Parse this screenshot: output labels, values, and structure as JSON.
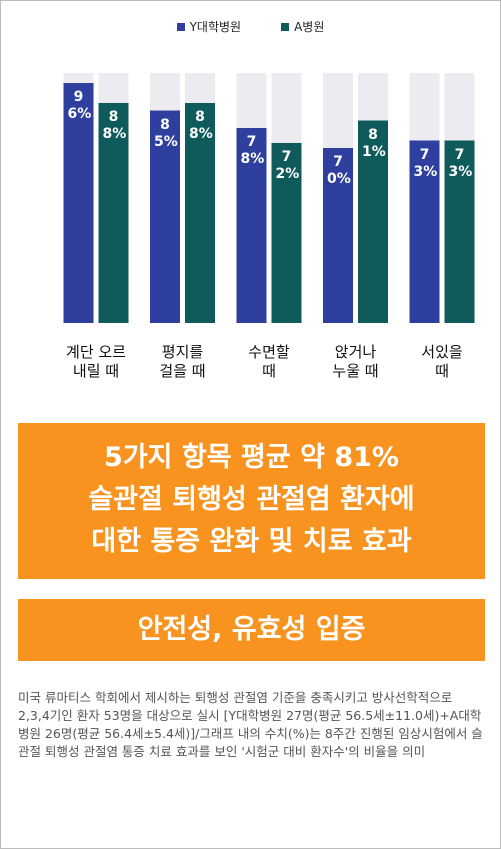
{
  "chart_data": {
    "type": "bar",
    "categories": [
      "계단 오르\n내릴 때",
      "평지를\n걸을 때",
      "수면할\n때",
      "앉거나\n누울 때",
      "서있을\n때"
    ],
    "series": [
      {
        "name": "Y대학병원",
        "color": "#2f3f9e",
        "values": [
          96,
          85,
          78,
          70,
          73
        ],
        "value_labels": [
          "96%",
          "85%",
          "78%",
          "70%",
          "73%"
        ]
      },
      {
        "name": "A병원",
        "color": "#0f5a5a",
        "values": [
          88,
          88,
          72,
          81,
          73
        ],
        "value_labels": [
          "88%",
          "88%",
          "72%",
          "81%",
          "73%"
        ]
      }
    ],
    "ylim": [
      0,
      100
    ]
  },
  "banner": {
    "lines": [
      "5가지 항목 평균 약 81%",
      "슬관절 퇴행성 관절염 환자에",
      "대한 통증 완화 및 치료 효과"
    ]
  },
  "subbanner": "안전성, 유효성 입증",
  "footnote": "미국 류마티스 학회에서 제시하는 퇴행성 관절염 기준을 충족시키고 방사선학적으로 2,3,4기인 환자 53명을 대상으로 실시 [Y대학병원 27명(평균 56.5세±11.0세)+A대학병원 26명(평균 56.4세±5.4세)]/그래프 내의 수치(%)는 8주간 진행된 임상시험에서 슬관절 퇴행성 관절염 통증 치료 효과를 보인 '시험군 대비 환자수'의 비율을 의미"
}
